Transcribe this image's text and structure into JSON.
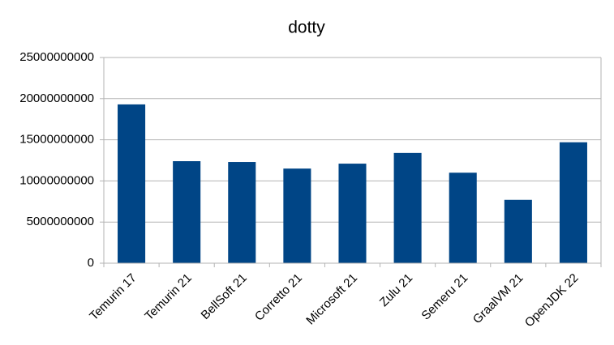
{
  "chart_data": {
    "type": "bar",
    "title": "dotty",
    "categories": [
      "Temurin 17",
      "Temurin 21",
      "BellSoft 21",
      "Corretto 21",
      "Microsoft 21",
      "Zulu 21",
      "Semeru 21",
      "GraalVM 21",
      "OpenJDK 22"
    ],
    "values": [
      19300000000,
      12400000000,
      12300000000,
      11500000000,
      12100000000,
      13400000000,
      11000000000,
      7700000000,
      14700000000
    ],
    "color": "#004586",
    "ylim": [
      0,
      25000000000
    ],
    "yticks": [
      0,
      5000000000,
      10000000000,
      15000000000,
      20000000000,
      25000000000
    ],
    "grid": true
  }
}
